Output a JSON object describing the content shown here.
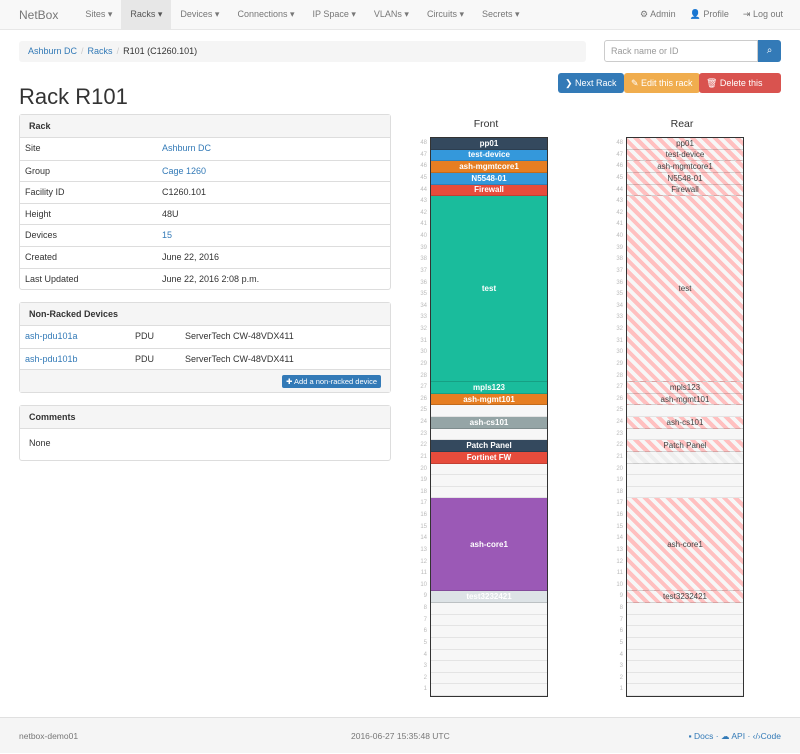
{
  "navbar": {
    "brand": "NetBox",
    "items": [
      "Sites ▾",
      "Racks ▾",
      "Devices ▾",
      "Connections ▾",
      "IP Space ▾",
      "VLANs ▾",
      "Circuits ▾",
      "Secrets ▾"
    ],
    "active": 1,
    "right": [
      {
        "icon": "gear-icon",
        "glyph": "⚙",
        "label": "Admin"
      },
      {
        "icon": "user-icon",
        "glyph": "👤",
        "label": "Profile"
      },
      {
        "icon": "logout-icon",
        "glyph": "⇥",
        "label": "Log out"
      }
    ]
  },
  "breadcrumb": [
    "Ashburn DC",
    "Racks",
    "R101 (C1260.101)"
  ],
  "search": {
    "placeholder": "Rack name or ID",
    "value": ""
  },
  "actions": {
    "next": "❯ Next Rack",
    "edit": "✎ Edit this rack",
    "delete": "🗑 Delete this rack"
  },
  "title": "Rack R101",
  "rack_panel": {
    "heading": "Rack",
    "rows": [
      {
        "k": "Site",
        "v": "Ashburn DC",
        "link": true
      },
      {
        "k": "Group",
        "v": "Cage 1260",
        "link": true
      },
      {
        "k": "Facility ID",
        "v": "C1260.101"
      },
      {
        "k": "Height",
        "v": "48U"
      },
      {
        "k": "Devices",
        "v": "15",
        "link": true
      },
      {
        "k": "Created",
        "v": "June 22, 2016"
      },
      {
        "k": "Last Updated",
        "v": "June 22, 2016 2:08 p.m."
      }
    ]
  },
  "nonracked": {
    "heading": "Non-Racked Devices",
    "rows": [
      {
        "name": "ash-pdu101a",
        "role": "PDU",
        "type": "ServerTech CW-48VDX411"
      },
      {
        "name": "ash-pdu101b",
        "role": "PDU",
        "type": "ServerTech CW-48VDX411"
      }
    ],
    "add": "✚ Add a non-racked device"
  },
  "comments": {
    "heading": "Comments",
    "text": "None"
  },
  "rack": {
    "height": 48,
    "front_label": "Front",
    "rear_label": "Rear",
    "devices": [
      {
        "name": "pp01",
        "top": 48,
        "u": 1,
        "color": "#34495e"
      },
      {
        "name": "test-device",
        "top": 47,
        "u": 1,
        "color": "#3498db"
      },
      {
        "name": "ash-mgmtcore1",
        "top": 46,
        "u": 1,
        "color": "#e67e22"
      },
      {
        "name": "N5548-01",
        "top": 45,
        "u": 1,
        "color": "#3498db"
      },
      {
        "name": "Firewall",
        "top": 44,
        "u": 1,
        "color": "#e74c3c"
      },
      {
        "name": "test",
        "top": 43,
        "u": 16,
        "color": "#1abc9c"
      },
      {
        "name": "mpls123",
        "top": 27,
        "u": 1,
        "color": "#1abc9c"
      },
      {
        "name": "ash-mgmt101",
        "top": 26,
        "u": 1,
        "color": "#e67e22"
      },
      {
        "name": "ash-cs101",
        "top": 24,
        "u": 1,
        "color": "#95a5a6"
      },
      {
        "name": "Patch Panel",
        "top": 22,
        "u": 1,
        "color": "#34495e"
      },
      {
        "name": "Fortinet FW",
        "top": 21,
        "u": 1,
        "color": "#e74c3c",
        "front_only": true
      },
      {
        "name": "ash-core1",
        "top": 17,
        "u": 8,
        "color": "#9b59b6"
      },
      {
        "name": "test3232421",
        "top": 9,
        "u": 1,
        "color": "#dde3e6"
      }
    ],
    "rear_reserved": [
      21
    ]
  },
  "footer": {
    "host": "netbox-demo01",
    "time": "2016-06-27 15:35:48 UTC",
    "docs": "Docs",
    "api": "API",
    "code": "Code"
  }
}
